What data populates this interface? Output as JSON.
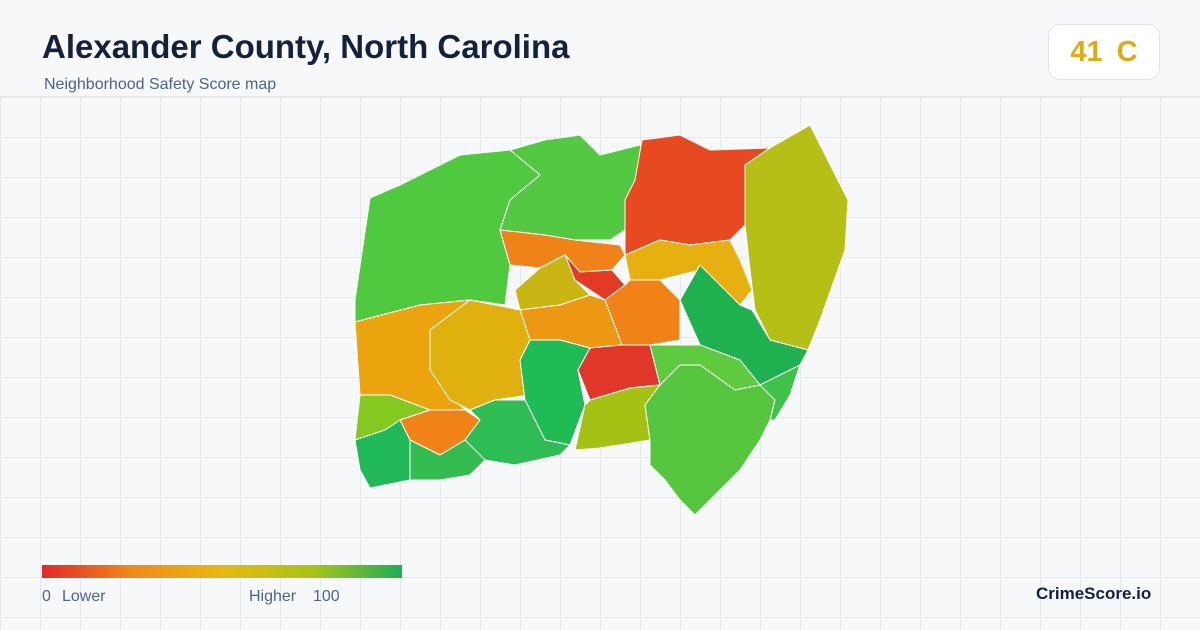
{
  "header": {
    "title": "Alexander County, North Carolina",
    "subtitle": "Neighborhood Safety Score map"
  },
  "score": {
    "value": 41,
    "grade": "C"
  },
  "legend": {
    "min": 0,
    "min_label": "Lower",
    "max_label": "Higher",
    "max": 100
  },
  "brand": "CrimeScore.io"
}
